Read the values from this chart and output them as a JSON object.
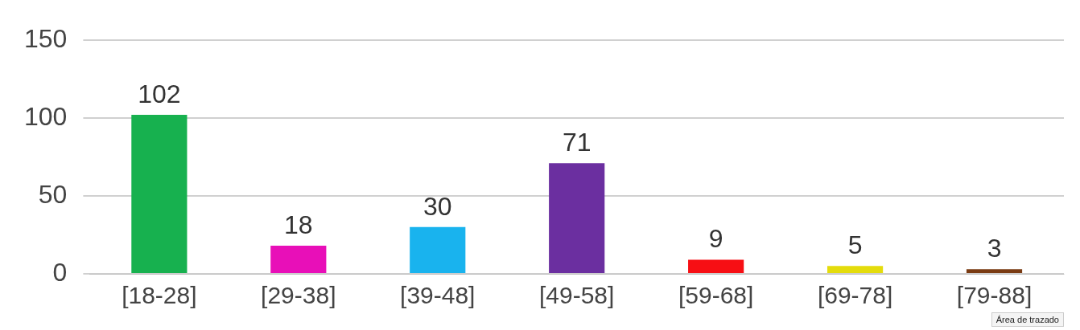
{
  "chart_data": {
    "type": "bar",
    "categories": [
      "[18-28]",
      "[29-38]",
      "[39-48]",
      "[49-58]",
      "[59-68]",
      "[69-78]",
      "[79-88]"
    ],
    "values": [
      102,
      18,
      30,
      71,
      9,
      5,
      3
    ],
    "colors": [
      "#17b14f",
      "#e80fb8",
      "#19b3ee",
      "#6b2fa0",
      "#f70f14",
      "#e4dc0c",
      "#7a3b13"
    ],
    "ylim": [
      0,
      150
    ],
    "yticks": [
      0,
      50,
      100,
      150
    ],
    "grid": "y",
    "legend": false,
    "data_labels": true,
    "annotations": [
      "Área de trazado"
    ]
  }
}
